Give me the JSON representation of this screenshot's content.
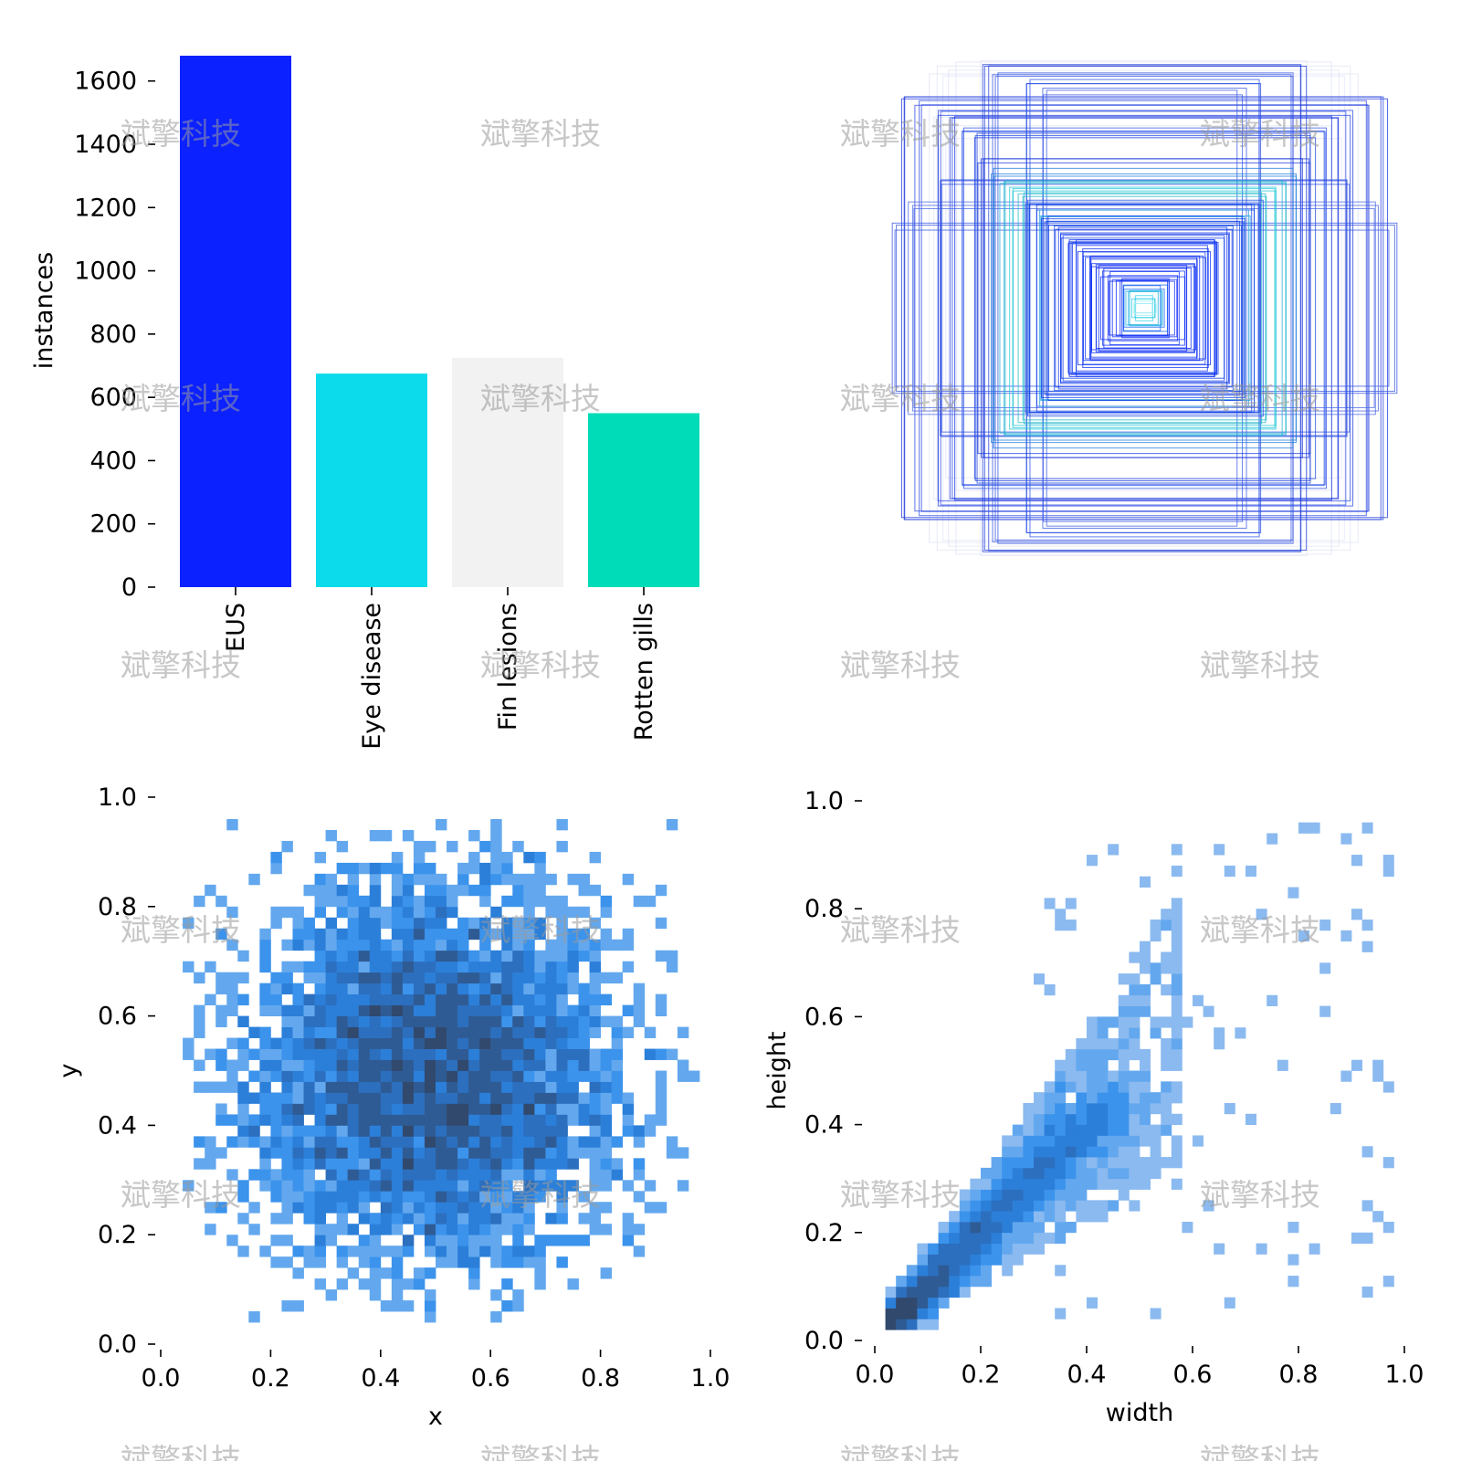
{
  "chart_data": [
    {
      "type": "bar",
      "ylabel": "instances",
      "categories": [
        "EUS",
        "Eye disease",
        "Fin lesions",
        "Rotten gills"
      ],
      "values": [
        1680,
        675,
        725,
        550
      ],
      "colors": [
        "#0b21ff",
        "#0bdbeb",
        "#f2f2f2",
        "#00dcb8"
      ],
      "ylim": [
        0,
        1680
      ],
      "yticks": [
        0,
        200,
        400,
        600,
        800,
        1000,
        1200,
        1400,
        1600
      ],
      "ytick_labels": [
        "0",
        "200",
        "400",
        "600",
        "800",
        "1000",
        "1200",
        "1400",
        "1600"
      ]
    },
    {
      "type": "boxes",
      "description_free": true,
      "center": [
        0.5,
        0.5
      ],
      "box_sizes": [
        {
          "w": 0.88,
          "h": 0.77,
          "color": "#1f3bdc"
        },
        {
          "w": 0.83,
          "h": 0.75,
          "color": "#2a45e0"
        },
        {
          "w": 0.58,
          "h": 0.9,
          "color": "#2340d8"
        },
        {
          "w": 0.54,
          "h": 0.86,
          "color": "#3050e0"
        },
        {
          "w": 0.76,
          "h": 0.72,
          "color": "#2a48e2"
        },
        {
          "w": 0.7,
          "h": 0.7,
          "color": "#1d3be0"
        },
        {
          "w": 0.66,
          "h": 0.66,
          "color": "#2b52e6"
        },
        {
          "w": 0.62,
          "h": 0.64,
          "color": "#1e44de"
        },
        {
          "w": 0.42,
          "h": 0.84,
          "color": "#2a4fe4"
        },
        {
          "w": 0.36,
          "h": 0.8,
          "color": "#3c5ae4"
        },
        {
          "w": 0.92,
          "h": 0.3,
          "color": "#3454e0"
        },
        {
          "w": 0.86,
          "h": 0.38,
          "color": "#4a66e6"
        },
        {
          "w": 0.74,
          "h": 0.46,
          "color": "#2c4ce0"
        },
        {
          "w": 0.6,
          "h": 0.54,
          "color": "#1b38dc"
        },
        {
          "w": 0.56,
          "h": 0.5,
          "color": "#1a7ad8"
        },
        {
          "w": 0.52,
          "h": 0.47,
          "color": "#19b2d0"
        },
        {
          "w": 0.48,
          "h": 0.44,
          "color": "#22c6d6"
        },
        {
          "w": 0.45,
          "h": 0.41,
          "color": "#1cb8c8"
        },
        {
          "w": 0.42,
          "h": 0.39,
          "color": "#1550e0"
        },
        {
          "w": 0.4,
          "h": 0.37,
          "color": "#0c40e8"
        },
        {
          "w": 0.38,
          "h": 0.35,
          "color": "#1a9adc"
        },
        {
          "w": 0.36,
          "h": 0.33,
          "color": "#0b3ae8"
        },
        {
          "w": 0.34,
          "h": 0.31,
          "color": "#0f46e6"
        },
        {
          "w": 0.32,
          "h": 0.29,
          "color": "#0a30ea"
        },
        {
          "w": 0.3,
          "h": 0.27,
          "color": "#0a36ea"
        },
        {
          "w": 0.28,
          "h": 0.25,
          "color": "#0b2ef0"
        },
        {
          "w": 0.26,
          "h": 0.24,
          "color": "#0a34ee"
        },
        {
          "w": 0.24,
          "h": 0.22,
          "color": "#0a2cf2"
        },
        {
          "w": 0.22,
          "h": 0.2,
          "color": "#0a30f0"
        },
        {
          "w": 0.2,
          "h": 0.18,
          "color": "#0a2af4"
        },
        {
          "w": 0.18,
          "h": 0.16,
          "color": "#0a2ef2"
        },
        {
          "w": 0.16,
          "h": 0.15,
          "color": "#0a28f4"
        },
        {
          "w": 0.14,
          "h": 0.13,
          "color": "#0a2cf4"
        },
        {
          "w": 0.12,
          "h": 0.11,
          "color": "#0a26f6"
        },
        {
          "w": 0.1,
          "h": 0.1,
          "color": "#0a2af6"
        },
        {
          "w": 0.08,
          "h": 0.08,
          "color": "#1060f0"
        },
        {
          "w": 0.06,
          "h": 0.06,
          "color": "#18b0e0"
        },
        {
          "w": 0.045,
          "h": 0.045,
          "color": "#30d0e8"
        },
        {
          "w": 0.03,
          "h": 0.03,
          "color": "#a0ecf4"
        }
      ]
    },
    {
      "type": "heatmap",
      "xlabel": "x",
      "ylabel": "y",
      "xlim": [
        0,
        1
      ],
      "ylim": [
        0,
        1
      ],
      "xticks": [
        0.0,
        0.2,
        0.4,
        0.6,
        0.8,
        1.0
      ],
      "xtick_labels": [
        "0.0",
        "0.2",
        "0.4",
        "0.6",
        "0.8",
        "1.0"
      ],
      "yticks": [
        0.0,
        0.2,
        0.4,
        0.6,
        0.8,
        1.0
      ],
      "ytick_labels": [
        "0.0",
        "0.2",
        "0.4",
        "0.6",
        "0.8",
        "1.0"
      ],
      "bins": 50,
      "density": {
        "kind": "gaussian",
        "mean": [
          0.5,
          0.5
        ],
        "sd": [
          0.17,
          0.17
        ],
        "seed": 7
      }
    },
    {
      "type": "heatmap",
      "xlabel": "width",
      "ylabel": "height",
      "xlim": [
        0,
        1
      ],
      "ylim": [
        0,
        1
      ],
      "xticks": [
        0.0,
        0.2,
        0.4,
        0.6,
        0.8,
        1.0
      ],
      "xtick_labels": [
        "0.0",
        "0.2",
        "0.4",
        "0.6",
        "0.8",
        "1.0"
      ],
      "yticks": [
        0.0,
        0.2,
        0.4,
        0.6,
        0.8,
        1.0
      ],
      "ytick_labels": [
        "0.0",
        "0.2",
        "0.4",
        "0.6",
        "0.8",
        "1.0"
      ],
      "bins": 50,
      "density": {
        "kind": "diagonal",
        "seed": 13
      }
    }
  ],
  "watermark": {
    "text": "斌擎科技"
  }
}
